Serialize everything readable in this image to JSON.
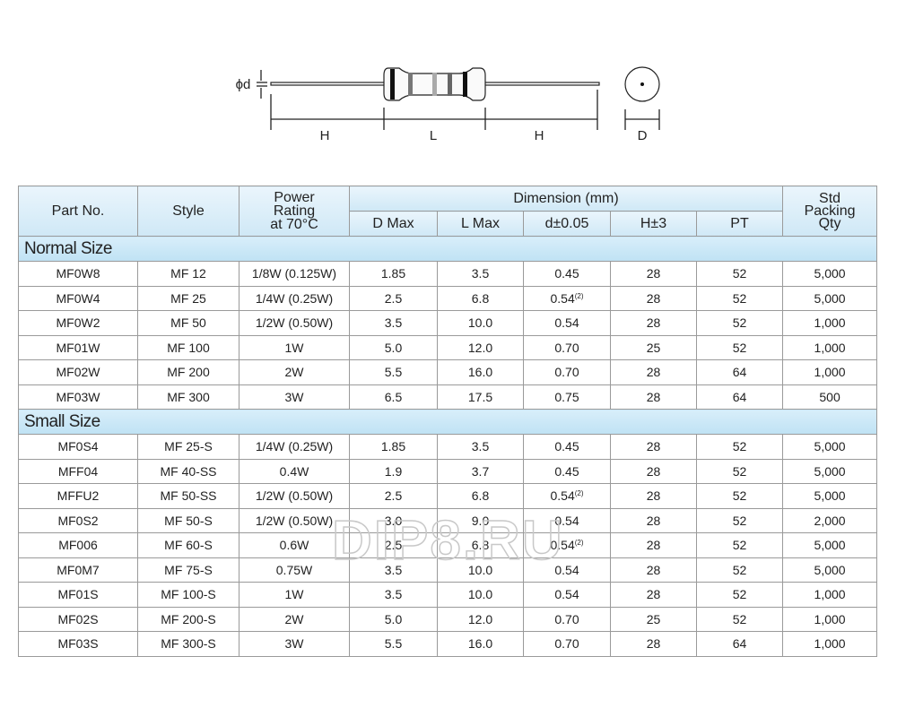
{
  "diagram": {
    "labels": {
      "phi_d": "ϕd",
      "h_left": "H",
      "l": "L",
      "h_right": "H",
      "d": "D"
    }
  },
  "table": {
    "headers": {
      "part_no": "Part No.",
      "style": "Style",
      "power": [
        "Power",
        "Rating",
        "at 70°C"
      ],
      "dimension": "Dimension (mm)",
      "packing": [
        "Std",
        "Packing",
        "Qty"
      ]
    },
    "sub_headers": [
      "D Max",
      "L Max",
      "d±0.05",
      "H±3",
      "PT"
    ],
    "sections": [
      {
        "title": "Normal Size",
        "rows": [
          [
            "MF0W8",
            "MF 12",
            "1/8W (0.125W)",
            "1.85",
            "3.5",
            "0.45",
            "",
            "28",
            "52",
            "5,000"
          ],
          [
            "MF0W4",
            "MF 25",
            "1/4W (0.25W)",
            "2.5",
            "6.8",
            "0.54",
            "(2)",
            "28",
            "52",
            "5,000"
          ],
          [
            "MF0W2",
            "MF 50",
            "1/2W (0.50W)",
            "3.5",
            "10.0",
            "0.54",
            "",
            "28",
            "52",
            "1,000"
          ],
          [
            "MF01W",
            "MF 100",
            "1W",
            "5.0",
            "12.0",
            "0.70",
            "",
            "25",
            "52",
            "1,000"
          ],
          [
            "MF02W",
            "MF 200",
            "2W",
            "5.5",
            "16.0",
            "0.70",
            "",
            "28",
            "64",
            "1,000"
          ],
          [
            "MF03W",
            "MF 300",
            "3W",
            "6.5",
            "17.5",
            "0.75",
            "",
            "28",
            "64",
            "500"
          ]
        ]
      },
      {
        "title": "Small Size",
        "rows": [
          [
            "MF0S4",
            "MF 25-S",
            "1/4W (0.25W)",
            "1.85",
            "3.5",
            "0.45",
            "",
            "28",
            "52",
            "5,000"
          ],
          [
            "MFF04",
            "MF 40-SS",
            "0.4W",
            "1.9",
            "3.7",
            "0.45",
            "",
            "28",
            "52",
            "5,000"
          ],
          [
            "MFFU2",
            "MF 50-SS",
            "1/2W (0.50W)",
            "2.5",
            "6.8",
            "0.54",
            "(2)",
            "28",
            "52",
            "5,000"
          ],
          [
            "MF0S2",
            "MF 50-S",
            "1/2W (0.50W)",
            "3.0",
            "9.0",
            "0.54",
            "",
            "28",
            "52",
            "2,000"
          ],
          [
            "MF006",
            "MF 60-S",
            "0.6W",
            "2.5",
            "6.8",
            "0.54",
            "(2)",
            "28",
            "52",
            "5,000"
          ],
          [
            "MF0M7",
            "MF 75-S",
            "0.75W",
            "3.5",
            "10.0",
            "0.54",
            "",
            "28",
            "52",
            "5,000"
          ],
          [
            "MF01S",
            "MF 100-S",
            "1W",
            "3.5",
            "10.0",
            "0.54",
            "",
            "28",
            "52",
            "1,000"
          ],
          [
            "MF02S",
            "MF 200-S",
            "2W",
            "5.0",
            "12.0",
            "0.70",
            "",
            "25",
            "52",
            "1,000"
          ],
          [
            "MF03S",
            "MF 300-S",
            "3W",
            "5.5",
            "16.0",
            "0.70",
            "",
            "28",
            "64",
            "1,000"
          ]
        ]
      }
    ]
  },
  "watermark": "DIP8.RU"
}
